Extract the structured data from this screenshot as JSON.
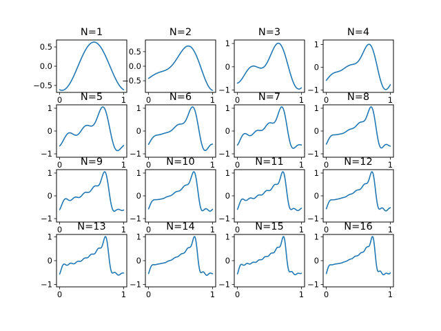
{
  "chart_data": {
    "type": "line",
    "layout": "4x4 grid of subplots",
    "line_color": "#1f77b4",
    "grid": false,
    "x_range": [
      0,
      1
    ],
    "subplots": [
      {
        "title": "N=1",
        "x_ticks": [
          "0",
          "1"
        ],
        "y_ticks": [
          "0.5",
          "0.0",
          "−0.5"
        ],
        "y_tick_values": [
          0.5,
          0.0,
          -0.5
        ],
        "ylim": [
          -0.68,
          0.68
        ]
      },
      {
        "title": "N=2",
        "x_ticks": [
          "0",
          "1"
        ],
        "y_ticks": [
          "0.5",
          "0.0",
          "−0.5"
        ],
        "y_tick_values": [
          0.5,
          0.0,
          -0.5
        ],
        "ylim": [
          -0.9,
          0.9
        ]
      },
      {
        "title": "N=3",
        "x_ticks": [
          "0",
          "1"
        ],
        "y_ticks": [
          "1",
          "0",
          "−1"
        ],
        "y_tick_values": [
          1,
          0,
          -1
        ],
        "ylim": [
          -1.1,
          1.15
        ]
      },
      {
        "title": "N=4",
        "x_ticks": [
          "0",
          "1"
        ],
        "y_ticks": [
          "1",
          "0",
          "−1"
        ],
        "y_tick_values": [
          1,
          0,
          -1
        ],
        "ylim": [
          -1.1,
          1.2
        ]
      },
      {
        "title": "N=5",
        "x_ticks": [
          "0",
          "1"
        ],
        "y_ticks": [
          "1",
          "0",
          "−1"
        ],
        "y_tick_values": [
          1,
          0,
          -1
        ],
        "ylim": [
          -1.15,
          1.15
        ]
      },
      {
        "title": "N=6",
        "x_ticks": [
          "0",
          "1"
        ],
        "y_ticks": [
          "1",
          "0",
          "−1"
        ],
        "y_tick_values": [
          1,
          0,
          -1
        ],
        "ylim": [
          -1.15,
          1.15
        ]
      },
      {
        "title": "N=7",
        "x_ticks": [
          "0",
          "1"
        ],
        "y_ticks": [
          "1",
          "0",
          "−1"
        ],
        "y_tick_values": [
          1,
          0,
          -1
        ],
        "ylim": [
          -1.15,
          1.15
        ]
      },
      {
        "title": "N=8",
        "x_ticks": [
          "0",
          "1"
        ],
        "y_ticks": [
          "1",
          "0",
          "−1"
        ],
        "y_tick_values": [
          1,
          0,
          -1
        ],
        "ylim": [
          -1.15,
          1.15
        ]
      },
      {
        "title": "N=9",
        "x_ticks": [
          "0",
          "1"
        ],
        "y_ticks": [
          "1",
          "0",
          "−1"
        ],
        "y_tick_values": [
          1,
          0,
          -1
        ],
        "ylim": [
          -1.15,
          1.15
        ]
      },
      {
        "title": "N=10",
        "x_ticks": [
          "0",
          "1"
        ],
        "y_ticks": [
          "1",
          "0",
          "−1"
        ],
        "y_tick_values": [
          1,
          0,
          -1
        ],
        "ylim": [
          -1.15,
          1.15
        ]
      },
      {
        "title": "N=11",
        "x_ticks": [
          "0",
          "1"
        ],
        "y_ticks": [
          "1",
          "0",
          "−1"
        ],
        "y_tick_values": [
          1,
          0,
          -1
        ],
        "ylim": [
          -1.15,
          1.15
        ]
      },
      {
        "title": "N=12",
        "x_ticks": [
          "0",
          "1"
        ],
        "y_ticks": [
          "1",
          "0",
          "−1"
        ],
        "y_tick_values": [
          1,
          0,
          -1
        ],
        "ylim": [
          -1.15,
          1.15
        ]
      },
      {
        "title": "N=13",
        "x_ticks": [
          "0",
          "1"
        ],
        "y_ticks": [
          "1",
          "0",
          "−1"
        ],
        "y_tick_values": [
          1,
          0,
          -1
        ],
        "ylim": [
          -1.1,
          1.1
        ]
      },
      {
        "title": "N=14",
        "x_ticks": [
          "0",
          "1"
        ],
        "y_ticks": [
          "1",
          "0",
          "−1"
        ],
        "y_tick_values": [
          1,
          0,
          -1
        ],
        "ylim": [
          -1.1,
          1.1
        ]
      },
      {
        "title": "N=15",
        "x_ticks": [
          "0",
          "1"
        ],
        "y_ticks": [
          "1",
          "0",
          "−1"
        ],
        "y_tick_values": [
          1,
          0,
          -1
        ],
        "ylim": [
          -1.1,
          1.1
        ]
      },
      {
        "title": "N=16",
        "x_ticks": [
          "0",
          "1"
        ],
        "y_ticks": [
          "1",
          "0",
          "−1"
        ],
        "y_tick_values": [
          1,
          0,
          -1
        ],
        "ylim": [
          -1.1,
          1.1
        ]
      }
    ]
  }
}
